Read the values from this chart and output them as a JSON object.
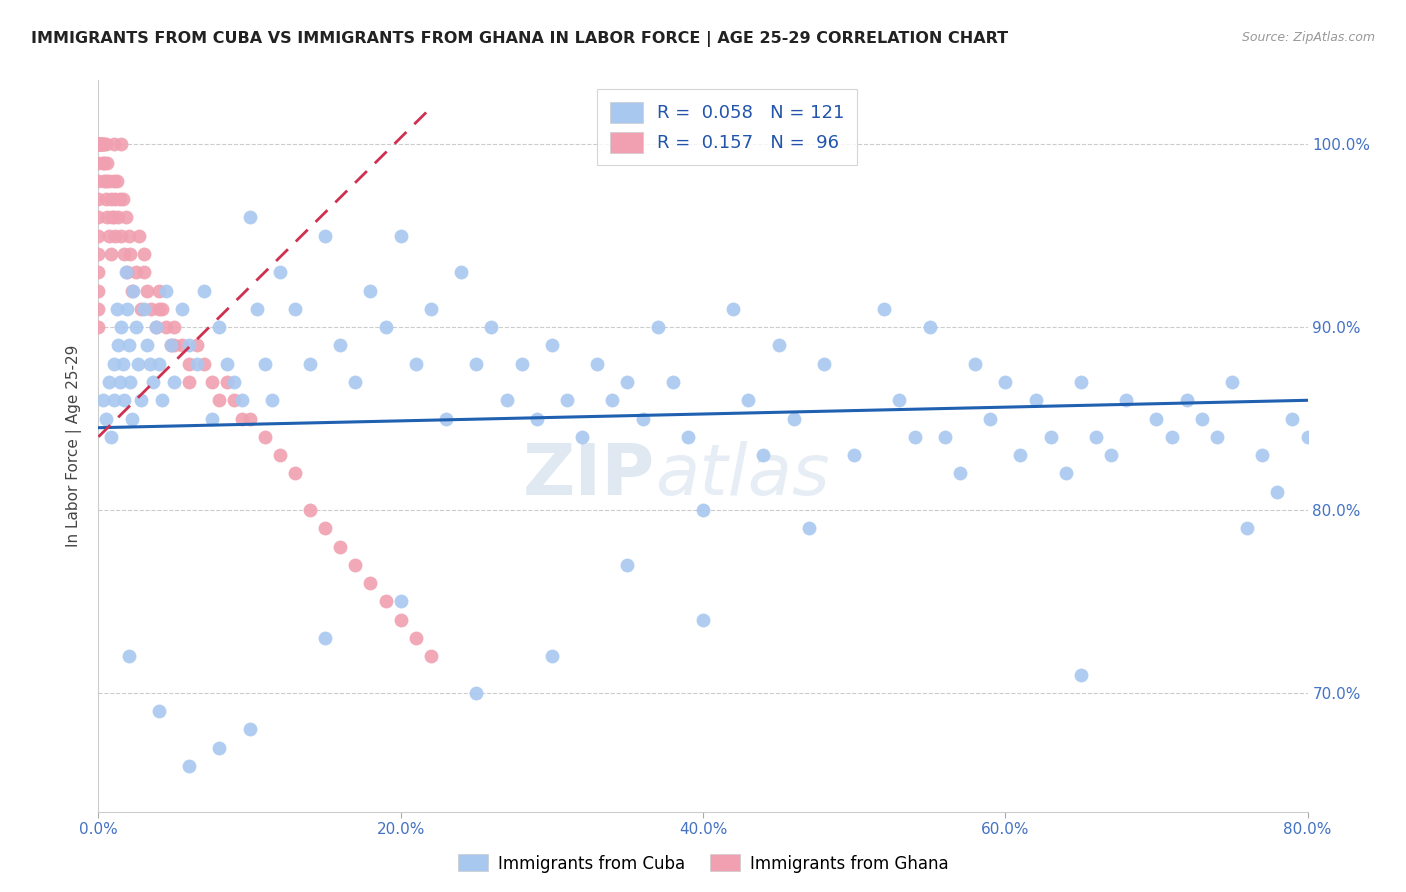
{
  "title": "IMMIGRANTS FROM CUBA VS IMMIGRANTS FROM GHANA IN LABOR FORCE | AGE 25-29 CORRELATION CHART",
  "source": "Source: ZipAtlas.com",
  "ylabel": "In Labor Force | Age 25-29",
  "x_tick_labels": [
    "0.0%",
    "20.0%",
    "40.0%",
    "60.0%",
    "80.0%"
  ],
  "x_tick_values": [
    0.0,
    0.2,
    0.4,
    0.6,
    0.8
  ],
  "y_tick_labels": [
    "70.0%",
    "80.0%",
    "90.0%",
    "100.0%"
  ],
  "y_tick_values": [
    0.7,
    0.8,
    0.9,
    1.0
  ],
  "xlim": [
    0.0,
    0.8
  ],
  "ylim": [
    0.635,
    1.035
  ],
  "cuba_R": 0.058,
  "cuba_N": 121,
  "ghana_R": 0.157,
  "ghana_N": 96,
  "cuba_color": "#a8c8f0",
  "ghana_color": "#f0a0b0",
  "cuba_line_color": "#2060b0",
  "ghana_line_color": "#d03050",
  "watermark_zip": "ZIP",
  "watermark_atlas": "atlas",
  "legend_text1": "R =  0.058   N = 121",
  "legend_text2": "R =  0.157   N =  96",
  "bottom_label1": "Immigrants from Cuba",
  "bottom_label2": "Immigrants from Ghana",
  "cuba_x": [
    0.003,
    0.005,
    0.007,
    0.008,
    0.01,
    0.01,
    0.012,
    0.013,
    0.014,
    0.015,
    0.016,
    0.017,
    0.018,
    0.019,
    0.02,
    0.021,
    0.022,
    0.023,
    0.025,
    0.026,
    0.028,
    0.03,
    0.032,
    0.034,
    0.036,
    0.038,
    0.04,
    0.042,
    0.045,
    0.048,
    0.05,
    0.055,
    0.06,
    0.065,
    0.07,
    0.075,
    0.08,
    0.085,
    0.09,
    0.095,
    0.1,
    0.105,
    0.11,
    0.115,
    0.12,
    0.13,
    0.14,
    0.15,
    0.16,
    0.17,
    0.18,
    0.19,
    0.2,
    0.21,
    0.22,
    0.23,
    0.24,
    0.25,
    0.26,
    0.27,
    0.28,
    0.29,
    0.3,
    0.31,
    0.32,
    0.33,
    0.34,
    0.35,
    0.36,
    0.37,
    0.38,
    0.39,
    0.4,
    0.42,
    0.43,
    0.44,
    0.45,
    0.46,
    0.47,
    0.48,
    0.5,
    0.52,
    0.53,
    0.54,
    0.55,
    0.56,
    0.57,
    0.58,
    0.59,
    0.6,
    0.61,
    0.62,
    0.63,
    0.64,
    0.65,
    0.66,
    0.67,
    0.68,
    0.7,
    0.71,
    0.72,
    0.73,
    0.74,
    0.75,
    0.76,
    0.77,
    0.78,
    0.79,
    0.8,
    0.65,
    0.4,
    0.35,
    0.3,
    0.25,
    0.2,
    0.15,
    0.1,
    0.08,
    0.06,
    0.04,
    0.02
  ],
  "cuba_y": [
    0.86,
    0.85,
    0.87,
    0.84,
    0.88,
    0.86,
    0.91,
    0.89,
    0.87,
    0.9,
    0.88,
    0.86,
    0.93,
    0.91,
    0.89,
    0.87,
    0.85,
    0.92,
    0.9,
    0.88,
    0.86,
    0.91,
    0.89,
    0.88,
    0.87,
    0.9,
    0.88,
    0.86,
    0.92,
    0.89,
    0.87,
    0.91,
    0.89,
    0.88,
    0.92,
    0.85,
    0.9,
    0.88,
    0.87,
    0.86,
    0.96,
    0.91,
    0.88,
    0.86,
    0.93,
    0.91,
    0.88,
    0.95,
    0.89,
    0.87,
    0.92,
    0.9,
    0.95,
    0.88,
    0.91,
    0.85,
    0.93,
    0.88,
    0.9,
    0.86,
    0.88,
    0.85,
    0.89,
    0.86,
    0.84,
    0.88,
    0.86,
    0.87,
    0.85,
    0.9,
    0.87,
    0.84,
    0.8,
    0.91,
    0.86,
    0.83,
    0.89,
    0.85,
    0.79,
    0.88,
    0.83,
    0.91,
    0.86,
    0.84,
    0.9,
    0.84,
    0.82,
    0.88,
    0.85,
    0.87,
    0.83,
    0.86,
    0.84,
    0.82,
    0.87,
    0.84,
    0.83,
    0.86,
    0.85,
    0.84,
    0.86,
    0.85,
    0.84,
    0.87,
    0.79,
    0.83,
    0.81,
    0.85,
    0.84,
    0.71,
    0.74,
    0.77,
    0.72,
    0.7,
    0.75,
    0.73,
    0.68,
    0.67,
    0.66,
    0.69,
    0.72
  ],
  "ghana_x": [
    0.0,
    0.0,
    0.0,
    0.0,
    0.0,
    0.0,
    0.0,
    0.0,
    0.0,
    0.0,
    0.0,
    0.0,
    0.0,
    0.0,
    0.0,
    0.0,
    0.0,
    0.0,
    0.0,
    0.0,
    0.002,
    0.002,
    0.003,
    0.003,
    0.004,
    0.004,
    0.005,
    0.005,
    0.006,
    0.006,
    0.007,
    0.007,
    0.008,
    0.008,
    0.009,
    0.01,
    0.01,
    0.01,
    0.011,
    0.011,
    0.012,
    0.013,
    0.014,
    0.015,
    0.015,
    0.016,
    0.017,
    0.018,
    0.019,
    0.02,
    0.021,
    0.022,
    0.025,
    0.027,
    0.028,
    0.03,
    0.032,
    0.035,
    0.038,
    0.04,
    0.042,
    0.045,
    0.048,
    0.05,
    0.055,
    0.06,
    0.065,
    0.07,
    0.075,
    0.08,
    0.085,
    0.09,
    0.095,
    0.1,
    0.11,
    0.12,
    0.13,
    0.14,
    0.15,
    0.16,
    0.17,
    0.18,
    0.19,
    0.2,
    0.21,
    0.22,
    0.03,
    0.04,
    0.05,
    0.06,
    0.001,
    0.001,
    0.002,
    0.003,
    0.004,
    0.005
  ],
  "ghana_y": [
    1.0,
    1.0,
    1.0,
    1.0,
    1.0,
    1.0,
    1.0,
    1.0,
    1.0,
    1.0,
    0.99,
    0.98,
    0.97,
    0.96,
    0.95,
    0.94,
    0.93,
    0.92,
    0.91,
    0.9,
    1.0,
    1.0,
    1.0,
    0.99,
    1.0,
    0.98,
    1.0,
    0.97,
    0.99,
    0.96,
    0.98,
    0.95,
    0.97,
    0.94,
    0.96,
    1.0,
    0.98,
    0.96,
    0.97,
    0.95,
    0.98,
    0.96,
    0.97,
    1.0,
    0.95,
    0.97,
    0.94,
    0.96,
    0.93,
    0.95,
    0.94,
    0.92,
    0.93,
    0.95,
    0.91,
    0.93,
    0.92,
    0.91,
    0.9,
    0.92,
    0.91,
    0.9,
    0.89,
    0.9,
    0.89,
    0.88,
    0.89,
    0.88,
    0.87,
    0.86,
    0.87,
    0.86,
    0.85,
    0.85,
    0.84,
    0.83,
    0.82,
    0.8,
    0.79,
    0.78,
    0.77,
    0.76,
    0.75,
    0.74,
    0.73,
    0.72,
    0.94,
    0.91,
    0.89,
    0.87,
    1.0,
    1.0,
    1.0,
    1.0,
    0.99,
    0.98
  ],
  "cuba_trend_x": [
    0.0,
    0.8
  ],
  "cuba_trend_y": [
    0.845,
    0.86
  ],
  "ghana_trend_x": [
    0.0,
    0.22
  ],
  "ghana_trend_y": [
    0.84,
    1.02
  ]
}
